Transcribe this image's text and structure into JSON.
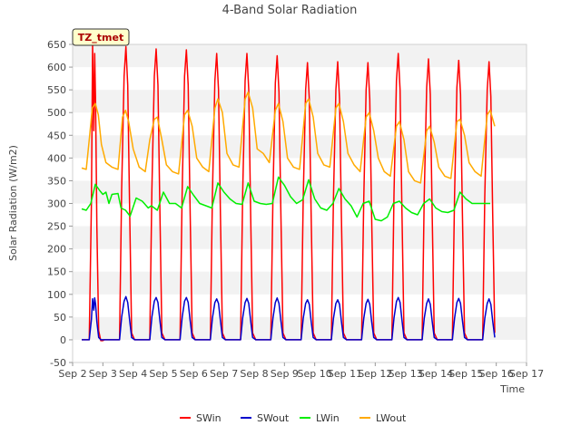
{
  "chart_data": {
    "type": "line",
    "title": "4-Band Solar Radiation",
    "xlabel": "Time",
    "ylabel": "Solar Radiation (W/m2)",
    "annotation": "TZ_tmet",
    "ylim": [
      -50,
      650
    ],
    "yticks": [
      -50,
      0,
      50,
      100,
      150,
      200,
      250,
      300,
      350,
      400,
      450,
      500,
      550,
      600,
      650
    ],
    "xlim": [
      2,
      17
    ],
    "xticks": [
      2,
      3,
      4,
      5,
      6,
      7,
      8,
      9,
      10,
      11,
      12,
      13,
      14,
      15,
      16,
      17
    ],
    "xtick_labels": [
      "Sep 2",
      "Sep 3",
      "Sep 4",
      "Sep 5",
      "Sep 6",
      "Sep 7",
      "Sep 8",
      "Sep 9",
      "Sep 10",
      "Sep 11",
      "Sep 12",
      "Sep 13",
      "Sep 14",
      "Sep 15",
      "Sep 16",
      "Sep 17"
    ],
    "legend_position": "bottom",
    "grid": "horizontal bands",
    "series": [
      {
        "name": "SWin",
        "color": "#ff0000",
        "x": [
          2.3,
          2.55,
          2.62,
          2.66,
          2.7,
          2.73,
          2.76,
          2.8,
          2.86,
          2.93,
          3.0,
          3.05,
          3.55,
          3.62,
          3.7,
          3.76,
          3.82,
          3.88,
          3.95,
          4.05,
          4.55,
          4.62,
          4.7,
          4.76,
          4.82,
          4.88,
          4.95,
          5.05,
          5.55,
          5.62,
          5.7,
          5.76,
          5.82,
          5.88,
          5.95,
          6.05,
          6.55,
          6.62,
          6.7,
          6.76,
          6.82,
          6.88,
          6.95,
          7.05,
          7.55,
          7.62,
          7.7,
          7.76,
          7.82,
          7.88,
          7.95,
          8.05,
          8.55,
          8.62,
          8.7,
          8.76,
          8.82,
          8.88,
          8.95,
          9.05,
          9.55,
          9.62,
          9.7,
          9.76,
          9.82,
          9.88,
          9.95,
          10.05,
          10.55,
          10.62,
          10.7,
          10.76,
          10.82,
          10.88,
          10.95,
          11.05,
          11.55,
          11.62,
          11.7,
          11.76,
          11.82,
          11.88,
          11.95,
          12.05,
          12.55,
          12.62,
          12.7,
          12.76,
          12.82,
          12.88,
          12.95,
          13.05,
          13.55,
          13.62,
          13.7,
          13.76,
          13.82,
          13.88,
          13.95,
          14.05,
          14.55,
          14.62,
          14.7,
          14.76,
          14.82,
          14.88,
          14.95,
          15.05,
          15.55,
          15.62,
          15.7,
          15.76,
          15.82,
          15.88,
          15.95
        ],
        "y": [
          0,
          0,
          300,
          650,
          460,
          630,
          520,
          250,
          20,
          -2,
          -2,
          0,
          0,
          330,
          580,
          645,
          560,
          300,
          15,
          0,
          0,
          330,
          580,
          640,
          560,
          300,
          15,
          0,
          0,
          330,
          580,
          638,
          560,
          300,
          15,
          0,
          0,
          320,
          570,
          630,
          550,
          290,
          15,
          0,
          0,
          320,
          570,
          630,
          550,
          290,
          15,
          0,
          0,
          320,
          565,
          625,
          545,
          290,
          15,
          0,
          0,
          310,
          550,
          610,
          530,
          280,
          15,
          0,
          0,
          310,
          550,
          612,
          530,
          280,
          15,
          0,
          0,
          310,
          550,
          610,
          530,
          280,
          15,
          0,
          0,
          320,
          570,
          630,
          550,
          290,
          15,
          0,
          0,
          315,
          555,
          618,
          540,
          285,
          15,
          0,
          0,
          315,
          555,
          615,
          540,
          285,
          15,
          0,
          0,
          315,
          550,
          612,
          535,
          280,
          15
        ]
      },
      {
        "name": "SWout",
        "color": "#0000cc",
        "x": [
          2.3,
          2.55,
          2.62,
          2.66,
          2.7,
          2.73,
          2.76,
          2.8,
          2.86,
          2.93,
          3.0,
          3.05,
          3.55,
          3.62,
          3.7,
          3.76,
          3.82,
          3.88,
          3.95,
          4.05,
          4.55,
          4.62,
          4.7,
          4.76,
          4.82,
          4.88,
          4.95,
          5.05,
          5.55,
          5.62,
          5.7,
          5.76,
          5.82,
          5.88,
          5.95,
          6.05,
          6.55,
          6.62,
          6.7,
          6.76,
          6.82,
          6.88,
          6.95,
          7.05,
          7.55,
          7.62,
          7.7,
          7.76,
          7.82,
          7.88,
          7.95,
          8.05,
          8.55,
          8.62,
          8.7,
          8.76,
          8.82,
          8.88,
          8.95,
          9.05,
          9.55,
          9.62,
          9.7,
          9.76,
          9.82,
          9.88,
          9.95,
          10.05,
          10.55,
          10.62,
          10.7,
          10.76,
          10.82,
          10.88,
          10.95,
          11.05,
          11.55,
          11.62,
          11.7,
          11.76,
          11.82,
          11.88,
          11.95,
          12.05,
          12.55,
          12.62,
          12.7,
          12.76,
          12.82,
          12.88,
          12.95,
          13.05,
          13.55,
          13.62,
          13.7,
          13.76,
          13.82,
          13.88,
          13.95,
          14.05,
          14.55,
          14.62,
          14.7,
          14.76,
          14.82,
          14.88,
          14.95,
          15.05,
          15.55,
          15.62,
          15.7,
          15.76,
          15.82,
          15.88,
          15.95
        ],
        "y": [
          0,
          0,
          45,
          90,
          65,
          92,
          78,
          40,
          5,
          0,
          0,
          0,
          0,
          50,
          85,
          95,
          82,
          45,
          5,
          0,
          0,
          50,
          85,
          93,
          82,
          45,
          5,
          0,
          0,
          50,
          85,
          93,
          82,
          45,
          5,
          0,
          0,
          48,
          82,
          90,
          80,
          44,
          5,
          0,
          0,
          48,
          82,
          91,
          80,
          44,
          5,
          0,
          0,
          48,
          82,
          92,
          80,
          44,
          5,
          0,
          0,
          47,
          80,
          88,
          78,
          42,
          5,
          0,
          0,
          47,
          80,
          88,
          78,
          42,
          5,
          0,
          0,
          47,
          80,
          89,
          78,
          42,
          5,
          0,
          0,
          48,
          84,
          93,
          82,
          45,
          5,
          0,
          0,
          47,
          80,
          90,
          78,
          42,
          5,
          0,
          0,
          47,
          82,
          91,
          80,
          44,
          5,
          0,
          0,
          47,
          80,
          90,
          78,
          42,
          5
        ]
      },
      {
        "name": "LWin",
        "color": "#00ee00",
        "x": [
          2.3,
          2.45,
          2.6,
          2.75,
          2.9,
          3.0,
          3.1,
          3.2,
          3.3,
          3.5,
          3.6,
          3.75,
          3.9,
          4.1,
          4.3,
          4.5,
          4.6,
          4.8,
          5.0,
          5.2,
          5.4,
          5.6,
          5.8,
          6.0,
          6.2,
          6.4,
          6.6,
          6.8,
          7.0,
          7.2,
          7.4,
          7.6,
          7.8,
          8.0,
          8.2,
          8.4,
          8.6,
          8.8,
          9.0,
          9.2,
          9.4,
          9.6,
          9.8,
          10.0,
          10.2,
          10.4,
          10.6,
          10.8,
          11.0,
          11.2,
          11.4,
          11.6,
          11.8,
          12.0,
          12.2,
          12.4,
          12.6,
          12.8,
          13.0,
          13.2,
          13.4,
          13.6,
          13.8,
          14.0,
          14.2,
          14.4,
          14.6,
          14.8,
          15.0,
          15.2,
          15.4,
          15.6,
          15.8
        ],
        "y": [
          288,
          285,
          300,
          342,
          328,
          320,
          325,
          300,
          320,
          322,
          290,
          285,
          272,
          312,
          305,
          290,
          295,
          285,
          325,
          300,
          300,
          290,
          337,
          318,
          300,
          295,
          290,
          345,
          325,
          310,
          300,
          298,
          345,
          305,
          300,
          298,
          300,
          358,
          340,
          315,
          300,
          308,
          352,
          310,
          290,
          285,
          300,
          333,
          310,
          295,
          270,
          300,
          305,
          265,
          262,
          270,
          300,
          305,
          290,
          280,
          275,
          300,
          310,
          290,
          282,
          280,
          285,
          325,
          310,
          300,
          300,
          300,
          300
        ]
      },
      {
        "name": "LWout",
        "color": "#ffaa00",
        "x": [
          2.3,
          2.45,
          2.55,
          2.65,
          2.75,
          2.85,
          2.95,
          3.1,
          3.3,
          3.5,
          3.65,
          3.75,
          3.85,
          4.0,
          4.2,
          4.4,
          4.55,
          4.7,
          4.8,
          4.95,
          5.1,
          5.3,
          5.5,
          5.7,
          5.8,
          5.95,
          6.1,
          6.3,
          6.5,
          6.7,
          6.8,
          6.95,
          7.1,
          7.3,
          7.5,
          7.7,
          7.8,
          7.95,
          8.1,
          8.3,
          8.5,
          8.7,
          8.8,
          8.95,
          9.1,
          9.3,
          9.5,
          9.7,
          9.8,
          9.95,
          10.1,
          10.3,
          10.5,
          10.7,
          10.8,
          10.95,
          11.1,
          11.3,
          11.5,
          11.7,
          11.8,
          11.95,
          12.1,
          12.3,
          12.5,
          12.7,
          12.8,
          12.95,
          13.1,
          13.3,
          13.5,
          13.7,
          13.8,
          13.95,
          14.1,
          14.3,
          14.5,
          14.7,
          14.8,
          14.95,
          15.1,
          15.3,
          15.5,
          15.7,
          15.8,
          15.95
        ],
        "y": [
          378,
          375,
          440,
          510,
          520,
          495,
          430,
          390,
          380,
          375,
          490,
          505,
          480,
          420,
          380,
          370,
          440,
          485,
          490,
          440,
          385,
          370,
          365,
          495,
          505,
          470,
          400,
          380,
          370,
          510,
          530,
          500,
          410,
          385,
          380,
          530,
          545,
          510,
          420,
          410,
          390,
          505,
          520,
          480,
          400,
          380,
          375,
          520,
          530,
          490,
          410,
          385,
          380,
          510,
          520,
          480,
          410,
          385,
          370,
          490,
          500,
          460,
          400,
          370,
          360,
          470,
          480,
          440,
          370,
          350,
          345,
          460,
          470,
          435,
          380,
          360,
          355,
          480,
          485,
          450,
          390,
          370,
          360,
          495,
          505,
          470
        ]
      }
    ]
  }
}
